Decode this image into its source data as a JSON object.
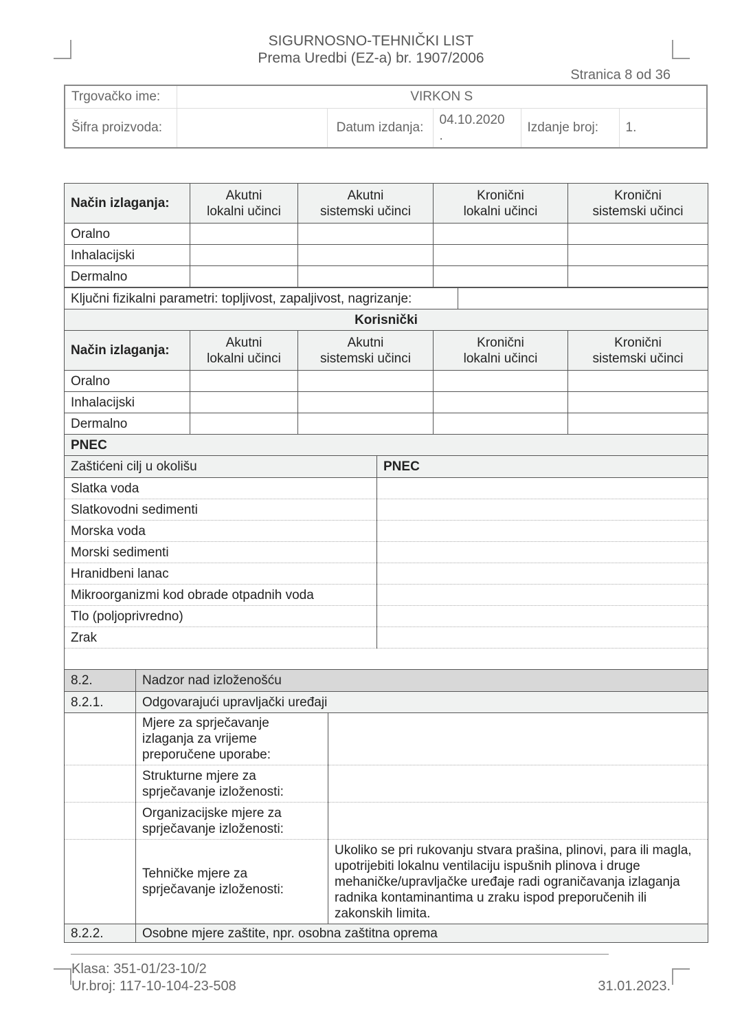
{
  "header": {
    "title": "SIGURNOSNO-TEHNIČKI LIST",
    "subtitle": "Prema Uredbi (EZ-a) br. 1907/2006",
    "page": "Stranica 8 od 36"
  },
  "info": {
    "trade_name_label": "Trgovačko ime:",
    "trade_name": "VIRKON S",
    "code_label": "Šifra proizvoda:",
    "code": "",
    "date_label": "Datum izdanja:",
    "date": "04.10.2020",
    "date_extra": ".",
    "issue_label": "Izdanje broj:",
    "issue": "1."
  },
  "exposure_header": {
    "label": "Način izlaganja:",
    "cols": [
      [
        "Akutni",
        "lokalni učinci"
      ],
      [
        "Akutni",
        "sistemski učinci"
      ],
      [
        "Kronični",
        "lokalni učinci"
      ],
      [
        "Kronični",
        "sistemski učinci"
      ]
    ]
  },
  "routes": [
    "Oralno",
    "Inhalacijski",
    "Dermalno"
  ],
  "key_params": "Ključni fizikalni parametri: topljivost, zapaljivost, nagrizanje:",
  "consumer_label": "Korisnički",
  "pnec": {
    "title": "PNEC",
    "target_label": "Zaštićeni cilj u okolišu",
    "value_label": "PNEC",
    "targets": [
      "Slatka voda",
      "Slatkovodni sedimenti",
      "Morska voda",
      "Morski sedimenti",
      "Hranidbeni lanac",
      "Mikroorganizmi kod obrade otpadnih voda",
      "Tlo (poljoprivredno)",
      "Zrak"
    ]
  },
  "section82": {
    "num": "8.2.",
    "title": "Nadzor nad izloženošću"
  },
  "section821": {
    "num": "8.2.1.",
    "title": "Odgovarajući upravljački uređaji",
    "rows": [
      {
        "label": "Mjere za sprječavanje izlaganja za vrijeme preporučene uporabe:",
        "value": ""
      },
      {
        "label": "Strukturne mjere za sprječavanje izloženosti:",
        "value": ""
      },
      {
        "label": "Organizacijske mjere za sprječavanje izloženosti:",
        "value": ""
      },
      {
        "label": "Tehničke mjere za sprječavanje izloženosti:",
        "value": "Ukoliko se pri rukovanju stvara prašina, plinovi, para ili magla, upotrijebiti lokalnu ventilaciju ispušnih plinova i druge mehaničke/upravljačke uređaje radi ograničavanja izlaganja radnika kontaminantima u zraku ispod preporučenih ili zakonskih limita."
      }
    ]
  },
  "section822": {
    "num": "8.2.2.",
    "title": "Osobne mjere zaštite, npr. osobna zaštitna oprema"
  },
  "footer": {
    "klasa": "Klasa: 351-01/23-10/2",
    "urbroj": "Ur.broj: 117-10-104-23-508",
    "date": "31.01.2023."
  }
}
